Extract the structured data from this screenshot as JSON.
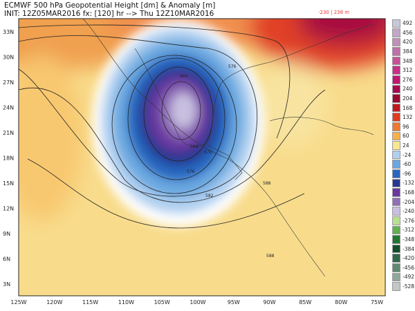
{
  "header": {
    "title": "ECMWF 500 hPa Geopotential Height [dm] & Anomaly [m]",
    "init_line": "INIT: 12Z05MAR2016 fx: [120] hr --> Thu 12Z10MAR2016",
    "range": "-230 | 238 m"
  },
  "map": {
    "lon_ticks": [
      "125W",
      "120W",
      "115W",
      "110W",
      "105W",
      "100W",
      "95W",
      "90W",
      "85W",
      "80W",
      "75W"
    ],
    "lat_ticks": [
      "33N",
      "30N",
      "27N",
      "24N",
      "21N",
      "18N",
      "15N",
      "12N",
      "9N",
      "6N",
      "3N"
    ],
    "contour_labels": [
      "576",
      "564",
      "570",
      "576",
      "582",
      "588",
      "588",
      "576",
      "564"
    ]
  },
  "colorbar": [
    {
      "label": "492",
      "color": "#c8c8d8"
    },
    {
      "label": "456",
      "color": "#c0a8c8"
    },
    {
      "label": "420",
      "color": "#c090b8"
    },
    {
      "label": "384",
      "color": "#c070a8"
    },
    {
      "label": "348",
      "color": "#c85098"
    },
    {
      "label": "312",
      "color": "#c83088"
    },
    {
      "label": "276",
      "color": "#c01870"
    },
    {
      "label": "240",
      "color": "#a80850"
    },
    {
      "label": "204",
      "color": "#980a30"
    },
    {
      "label": "168",
      "color": "#c01820"
    },
    {
      "label": "132",
      "color": "#e03a20"
    },
    {
      "label": "96",
      "color": "#f07830"
    },
    {
      "label": "60",
      "color": "#f8b048"
    },
    {
      "label": "24",
      "color": "#f8e890"
    },
    {
      "label": "-24",
      "color": "#b0d0f0"
    },
    {
      "label": "-60",
      "color": "#6aa8e0"
    },
    {
      "label": "-96",
      "color": "#2868c0"
    },
    {
      "label": "-132",
      "color": "#283890"
    },
    {
      "label": "-168",
      "color": "#6838a0"
    },
    {
      "label": "-204",
      "color": "#9070b8"
    },
    {
      "label": "-240",
      "color": "#c8c0e0"
    },
    {
      "label": "-276",
      "color": "#b8e090"
    },
    {
      "label": "-312",
      "color": "#60b050"
    },
    {
      "label": "-348",
      "color": "#207830"
    },
    {
      "label": "-384",
      "color": "#105028"
    },
    {
      "label": "-420",
      "color": "#306848"
    },
    {
      "label": "-456",
      "color": "#608870"
    },
    {
      "label": "-492",
      "color": "#90a898"
    },
    {
      "label": "-528",
      "color": "#c0c8c4"
    }
  ]
}
